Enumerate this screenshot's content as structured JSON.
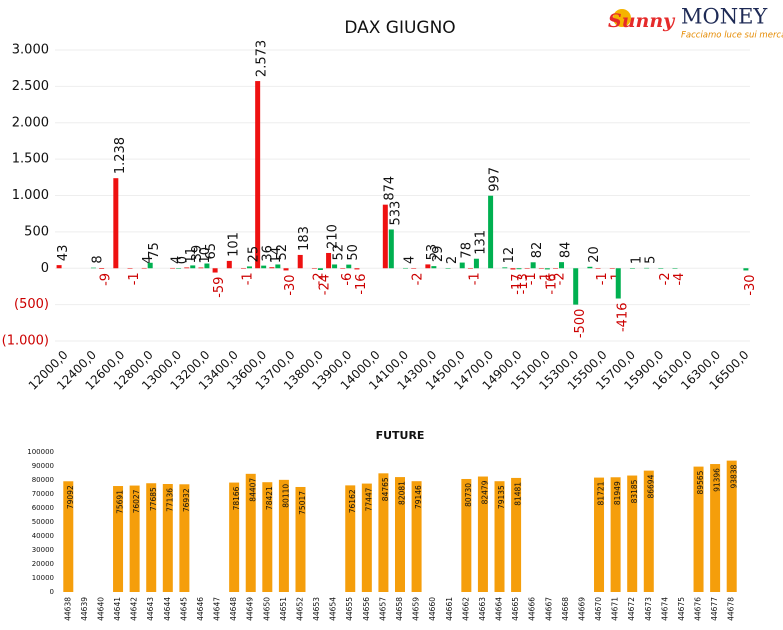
{
  "logo": {
    "brand_1": "Sunny",
    "brand_2": "MONEY",
    "tagline": "Facciamo luce sui mercati"
  },
  "chart_data": [
    {
      "type": "bar",
      "title": "DAX GIUGNO",
      "categories": [
        "12000,0",
        null,
        "12400,0",
        null,
        "12600,0",
        null,
        "12800,0",
        null,
        "13000,0",
        null,
        "13200,0",
        null,
        "13400,0",
        null,
        "13600,0",
        null,
        "13700,0",
        null,
        "13800,0",
        null,
        "13900,0",
        null,
        "14000,0",
        null,
        "14100,0",
        null,
        "14300,0",
        null,
        "14500,0",
        null,
        "14700,0",
        null,
        "14900,0",
        null,
        "15100,0",
        null,
        "15300,0",
        null,
        "15500,0",
        null,
        "15700,0",
        null,
        "15900,0",
        null,
        "16100,0",
        null,
        "16300,0",
        null,
        "16500,0"
      ],
      "series": [
        {
          "color": "#ee1111",
          "values": [
            43,
            null,
            null,
            -9,
            1238,
            -1,
            4,
            null,
            4,
            11,
            10,
            -59,
            101,
            -1,
            2573,
            14,
            -30,
            183,
            -2,
            210,
            -6,
            -16,
            null,
            874,
            null,
            -2,
            53,
            null,
            null,
            -1,
            null,
            null,
            -17,
            -1,
            -1,
            -2,
            null,
            null,
            -1,
            -1,
            null,
            null,
            null,
            null,
            null,
            null,
            null,
            null,
            null
          ],
          "value_labels": [
            "43",
            null,
            null,
            "-9",
            "1.238",
            "-1",
            "4",
            null,
            "4",
            "11",
            "10",
            "-59",
            "101",
            "-1",
            "2.573",
            "14",
            "-30",
            "183",
            "-2",
            "210",
            "-6",
            "-16",
            null,
            "874",
            null,
            "-2",
            "53",
            null,
            null,
            "-1",
            null,
            null,
            "-17",
            "-1",
            "-1",
            "-2",
            null,
            null,
            "-1",
            "-1",
            null,
            null,
            null,
            null,
            null,
            null,
            null,
            null,
            null
          ]
        },
        {
          "color": "#00b050",
          "values": [
            null,
            null,
            8,
            null,
            null,
            null,
            75,
            null,
            0,
            39,
            65,
            null,
            null,
            25,
            36,
            52,
            null,
            null,
            -24,
            52,
            50,
            null,
            null,
            533,
            4,
            null,
            29,
            2,
            78,
            131,
            997,
            12,
            -13,
            82,
            -16,
            84,
            -500,
            20,
            null,
            -416,
            1,
            5,
            -2,
            -4,
            null,
            null,
            null,
            null,
            -30
          ],
          "value_labels": [
            null,
            null,
            "8",
            null,
            null,
            null,
            "75",
            null,
            "0",
            "39",
            "65",
            null,
            null,
            "25",
            "36",
            "52",
            null,
            null,
            "-24",
            "52",
            "50",
            null,
            null,
            "533",
            "4",
            null,
            "29",
            "2",
            "78",
            "131",
            "997",
            "12",
            "-13",
            "82",
            "-16",
            "84",
            "-500",
            "20",
            null,
            "-416",
            "1",
            "5",
            "-2",
            "-4",
            null,
            null,
            null,
            null,
            "-30"
          ]
        }
      ],
      "ylim": [
        -1000,
        3000
      ],
      "yticks": [
        {
          "value": 3000,
          "label": "3.000"
        },
        {
          "value": 2500,
          "label": "2.500"
        },
        {
          "value": 2000,
          "label": "2.000"
        },
        {
          "value": 1500,
          "label": "1.500"
        },
        {
          "value": 1000,
          "label": "1.000"
        },
        500,
        0,
        {
          "value": -500,
          "label": "(500)"
        },
        {
          "value": -1000,
          "label": "(1.000)"
        }
      ],
      "grid": true
    },
    {
      "type": "bar",
      "title": "FUTURE",
      "color": "#f59e0b",
      "categories": [
        "44638",
        "44639",
        "44640",
        "44641",
        "44642",
        "44643",
        "44644",
        "44645",
        "44646",
        "44647",
        "44648",
        "44649",
        "44650",
        "44651",
        "44652",
        "44653",
        "44654",
        "44655",
        "44656",
        "44657",
        "44658",
        "44659",
        "44660",
        "44661",
        "44662",
        "44663",
        "44664",
        "44665",
        "44666",
        "44667",
        "44668",
        "44669",
        "44670",
        "44671",
        "44672",
        "44673",
        "44674",
        "44675",
        "44676",
        "44677",
        "44678"
      ],
      "values": [
        79092,
        null,
        null,
        75691,
        76027,
        77685,
        77136,
        76932,
        null,
        null,
        78166,
        84407,
        78421,
        80110,
        75017,
        null,
        null,
        76162,
        77447,
        84765,
        82081,
        79146,
        null,
        null,
        80730,
        82479,
        79135,
        81481,
        null,
        null,
        null,
        null,
        81721,
        81949,
        83185,
        86694,
        null,
        null,
        89565,
        91396,
        93838
      ],
      "ylim": [
        0,
        100000
      ],
      "yticks": [
        0,
        10000,
        20000,
        30000,
        40000,
        50000,
        60000,
        70000,
        80000,
        90000,
        100000
      ]
    }
  ]
}
